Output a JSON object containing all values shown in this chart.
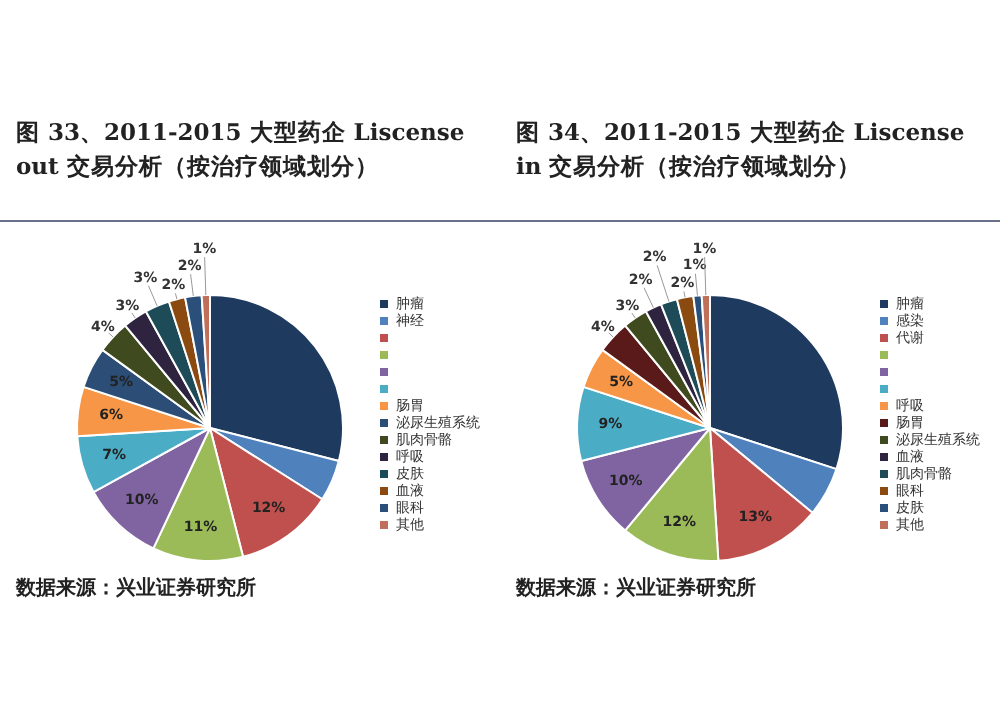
{
  "chart_data": [
    {
      "type": "pie",
      "title": "图 33、2011-2015 大型药企 Liscense out 交易分析（按治疗领域划分）",
      "legend": "right",
      "categories": [
        "肿瘤",
        "神经",
        null,
        null,
        null,
        null,
        "肠胃",
        "泌尿生殖系统",
        "肌肉骨骼",
        "呼吸",
        "皮肤",
        "血液",
        "眼科",
        "其他"
      ],
      "values": [
        29,
        5,
        12,
        11,
        10,
        7,
        6,
        5,
        4,
        3,
        3,
        2,
        2,
        1
      ],
      "colors": [
        "#1f3a5f",
        "#4f81bd",
        "#c0504d",
        "#9bbb59",
        "#8064a2",
        "#4bacc6",
        "#f79646",
        "#2c4d75",
        "#3f4a1e",
        "#2e2440",
        "#1d4b57",
        "#8a4a10",
        "#2a4f7a",
        "#c0705a"
      ],
      "value_labels": [
        null,
        null,
        "12%",
        "11%",
        "10%",
        "7%",
        "6%",
        "5%",
        "4%",
        "3%",
        "3%",
        "2%",
        "2%",
        "1%"
      ],
      "annotations": [
        "数据来源：兴业证券研究所"
      ]
    },
    {
      "type": "pie",
      "title": "图 34、2011-2015 大型药企 Liscense in 交易分析（按治疗领域划分）",
      "legend": "right",
      "categories": [
        "肿瘤",
        "感染",
        "代谢",
        null,
        null,
        null,
        "呼吸",
        "肠胃",
        "泌尿生殖系统",
        "血液",
        "肌肉骨骼",
        "眼科",
        "皮肤",
        "其他"
      ],
      "values": [
        30,
        6,
        13,
        12,
        10,
        9,
        5,
        4,
        3,
        2,
        2,
        2,
        1,
        1
      ],
      "colors": [
        "#1f3a5f",
        "#4f81bd",
        "#c0504d",
        "#9bbb59",
        "#8064a2",
        "#4bacc6",
        "#f79646",
        "#5a1a1a",
        "#3f4a1e",
        "#2e2440",
        "#1d4b57",
        "#8a4a10",
        "#2a4f7a",
        "#c0705a"
      ],
      "value_labels": [
        null,
        null,
        "13%",
        "12%",
        "10%",
        "9%",
        "5%",
        "4%",
        "3%",
        "2%",
        "2%",
        "2%",
        "1%",
        "1%"
      ],
      "annotations": [
        "数据来源：兴业证券研究所"
      ]
    }
  ]
}
